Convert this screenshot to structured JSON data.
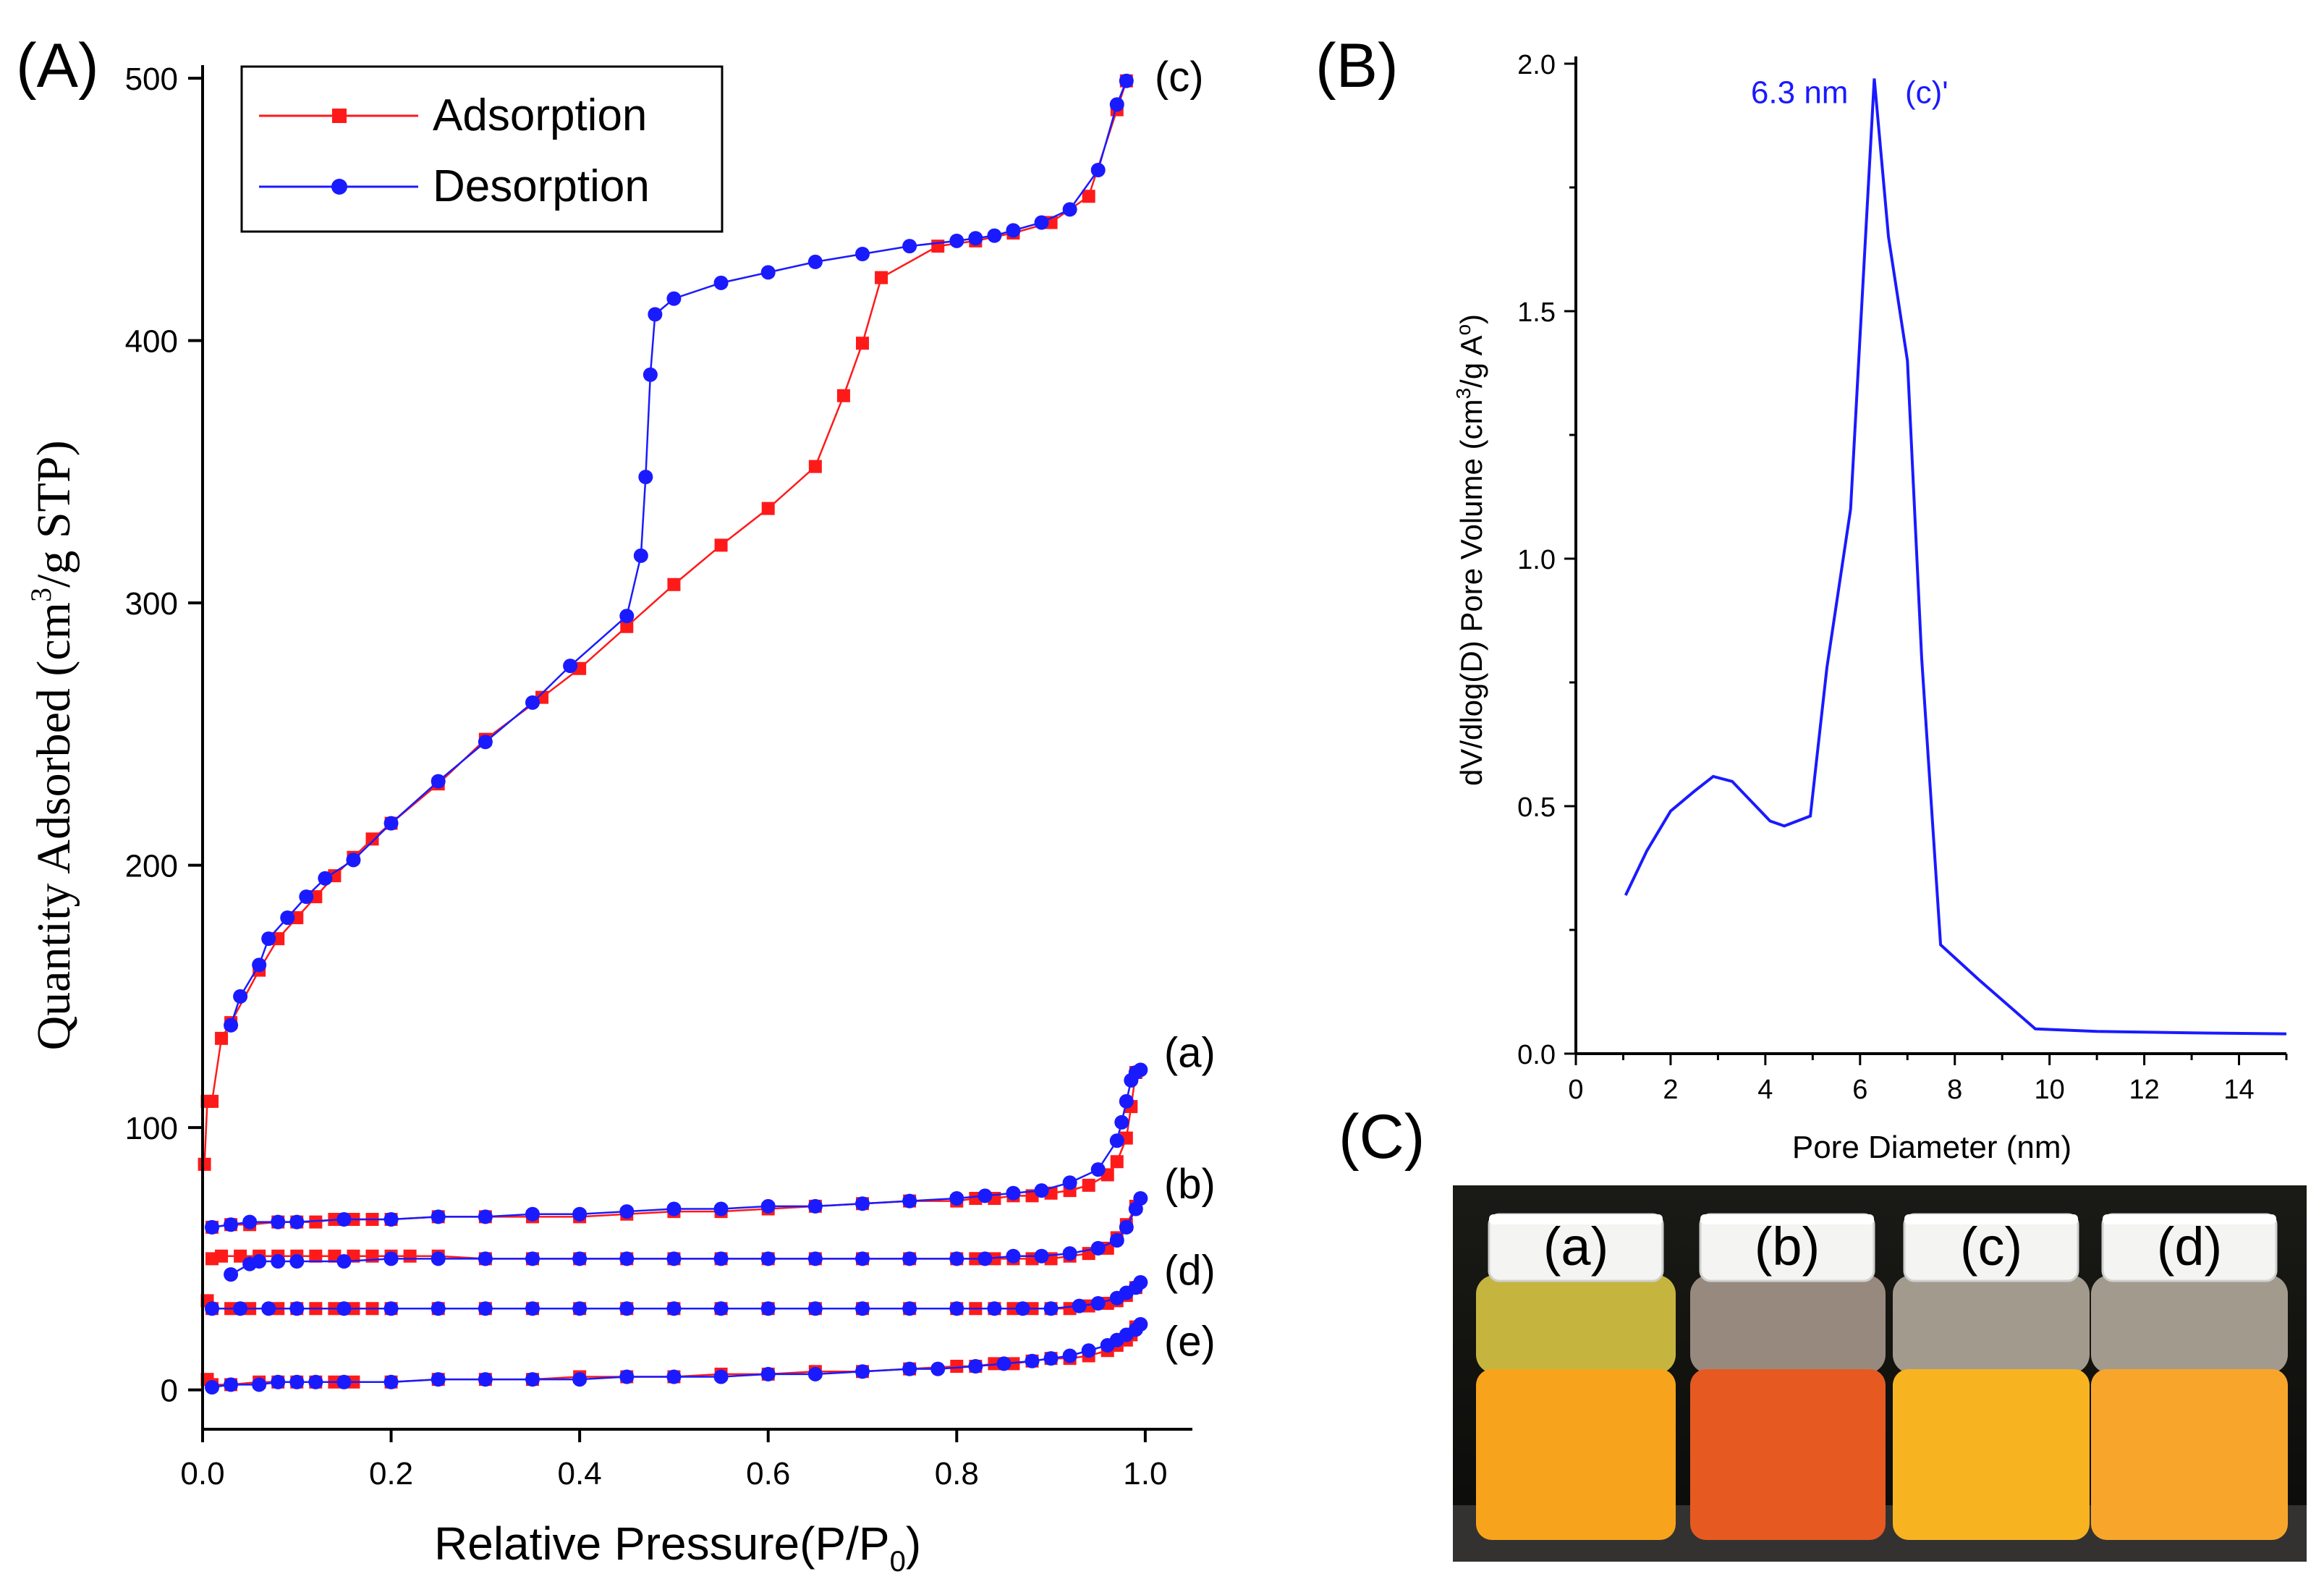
{
  "panel_labels": {
    "a": "(A)",
    "b": "(B)",
    "c": "(C)"
  },
  "colors": {
    "adsorption": "#ff1a1a",
    "desorption": "#1a1aff",
    "axis": "#000000",
    "curve_b": "#1a1aff"
  },
  "chart_data": [
    {
      "id": "isotherm",
      "type": "scatter",
      "title": "",
      "xlabel_main": "Relative Pressure(P/P",
      "xlabel_sub": "0",
      "xlabel_close": ")",
      "ylabel_pre": "Quantity Adsorbed (cm",
      "ylabel_sup": "3",
      "ylabel_post": "/g STP)",
      "xlim": [
        0,
        1.05
      ],
      "ylim": [
        -15,
        505
      ],
      "xticks": [
        0.0,
        0.2,
        0.4,
        0.6,
        0.8,
        1.0
      ],
      "xtick_labels": [
        "0.0",
        "0.2",
        "0.4",
        "0.6",
        "0.8",
        "1.0"
      ],
      "yticks": [
        0,
        100,
        200,
        300,
        400,
        500
      ],
      "ytick_labels": [
        "0",
        "100",
        "200",
        "300",
        "400",
        "500"
      ],
      "legend": {
        "position": "top-left",
        "adsorption_label": "Adsorption",
        "desorption_label": "Desorption"
      },
      "curve_labels": [
        {
          "text": "(c)",
          "x": 1.01,
          "y": 500
        },
        {
          "text": "(a)",
          "x": 1.02,
          "y": 128
        },
        {
          "text": "(b)",
          "x": 1.02,
          "y": 78
        },
        {
          "text": "(d)",
          "x": 1.02,
          "y": 45
        },
        {
          "text": "(e)",
          "x": 1.02,
          "y": 18
        }
      ],
      "series": [
        {
          "name": "(c) Adsorption",
          "kind": "adsorption",
          "x": [
            0.002,
            0.005,
            0.01,
            0.02,
            0.03,
            0.06,
            0.08,
            0.1,
            0.12,
            0.14,
            0.16,
            0.18,
            0.2,
            0.25,
            0.3,
            0.36,
            0.4,
            0.45,
            0.5,
            0.55,
            0.6,
            0.65,
            0.68,
            0.7,
            0.72,
            0.78,
            0.82,
            0.86,
            0.9,
            0.94,
            0.97,
            0.98
          ],
          "y": [
            86,
            110,
            110,
            134,
            140,
            160,
            172,
            180,
            188,
            196,
            203,
            210,
            216,
            231,
            248,
            264,
            275,
            291,
            307,
            322,
            336,
            352,
            379,
            399,
            424,
            436,
            438,
            441,
            445,
            455,
            488,
            499
          ]
        },
        {
          "name": "(c) Desorption",
          "kind": "desorption",
          "x": [
            0.98,
            0.97,
            0.95,
            0.92,
            0.89,
            0.86,
            0.84,
            0.82,
            0.8,
            0.75,
            0.7,
            0.65,
            0.6,
            0.55,
            0.5,
            0.48,
            0.475,
            0.47,
            0.465,
            0.45,
            0.39,
            0.35,
            0.3,
            0.25,
            0.2,
            0.16,
            0.13,
            0.11,
            0.09,
            0.07,
            0.06,
            0.04,
            0.03
          ],
          "y": [
            499,
            490,
            465,
            450,
            445,
            442,
            440,
            439,
            438,
            436,
            433,
            430,
            426,
            422,
            416,
            410,
            387,
            348,
            318,
            295,
            276,
            262,
            247,
            232,
            216,
            202,
            195,
            188,
            180,
            172,
            162,
            150,
            139
          ]
        },
        {
          "name": "(a) Adsorption",
          "kind": "adsorption",
          "x": [
            0.01,
            0.03,
            0.05,
            0.08,
            0.1,
            0.12,
            0.14,
            0.16,
            0.18,
            0.2,
            0.25,
            0.3,
            0.35,
            0.4,
            0.45,
            0.5,
            0.55,
            0.6,
            0.65,
            0.7,
            0.75,
            0.8,
            0.82,
            0.84,
            0.86,
            0.88,
            0.9,
            0.92,
            0.94,
            0.96,
            0.97,
            0.98,
            0.985,
            0.99
          ],
          "y": [
            62,
            63,
            63,
            64,
            64,
            64,
            65,
            65,
            65,
            65,
            66,
            66,
            66,
            66,
            67,
            68,
            68,
            69,
            70,
            71,
            72,
            72,
            73,
            73,
            74,
            74,
            75,
            76,
            78,
            82,
            87,
            96,
            108,
            121
          ]
        },
        {
          "name": "(a) Desorption",
          "kind": "desorption",
          "x": [
            0.995,
            0.99,
            0.985,
            0.98,
            0.975,
            0.97,
            0.95,
            0.92,
            0.89,
            0.86,
            0.83,
            0.8,
            0.75,
            0.7,
            0.65,
            0.6,
            0.55,
            0.5,
            0.45,
            0.4,
            0.35,
            0.3,
            0.25,
            0.2,
            0.15,
            0.1,
            0.08,
            0.05,
            0.03,
            0.01
          ],
          "y": [
            122,
            121,
            118,
            110,
            102,
            95,
            84,
            79,
            76,
            75,
            74,
            73,
            72,
            71,
            70,
            70,
            69,
            69,
            68,
            67,
            67,
            66,
            66,
            65,
            65,
            64,
            64,
            64,
            63,
            62
          ]
        },
        {
          "name": "(b) Adsorption",
          "kind": "adsorption",
          "x": [
            0.01,
            0.02,
            0.04,
            0.06,
            0.08,
            0.1,
            0.12,
            0.14,
            0.16,
            0.18,
            0.2,
            0.22,
            0.25,
            0.3,
            0.35,
            0.4,
            0.45,
            0.5,
            0.55,
            0.6,
            0.65,
            0.7,
            0.75,
            0.8,
            0.82,
            0.84,
            0.86,
            0.88,
            0.9,
            0.92,
            0.94,
            0.96,
            0.97,
            0.98,
            0.99
          ],
          "y": [
            50,
            51,
            51,
            51,
            51,
            51,
            51,
            51,
            51,
            51,
            51,
            51,
            51,
            50,
            50,
            50,
            50,
            50,
            50,
            50,
            50,
            50,
            50,
            50,
            50,
            50,
            50,
            50,
            50,
            51,
            52,
            54,
            58,
            63,
            70
          ]
        },
        {
          "name": "(b) Desorption",
          "kind": "desorption",
          "x": [
            0.995,
            0.99,
            0.98,
            0.97,
            0.95,
            0.92,
            0.89,
            0.86,
            0.83,
            0.8,
            0.75,
            0.7,
            0.65,
            0.6,
            0.55,
            0.5,
            0.45,
            0.4,
            0.35,
            0.3,
            0.25,
            0.2,
            0.15,
            0.1,
            0.08,
            0.06,
            0.05,
            0.03
          ],
          "y": [
            73,
            69,
            62,
            57,
            54,
            52,
            51,
            51,
            50,
            50,
            50,
            50,
            50,
            50,
            50,
            50,
            50,
            50,
            50,
            50,
            50,
            50,
            49,
            49,
            49,
            49,
            48,
            44
          ]
        },
        {
          "name": "(d) Adsorption",
          "kind": "adsorption",
          "x": [
            0.005,
            0.01,
            0.03,
            0.05,
            0.08,
            0.1,
            0.12,
            0.14,
            0.16,
            0.18,
            0.2,
            0.25,
            0.3,
            0.35,
            0.4,
            0.45,
            0.5,
            0.55,
            0.6,
            0.65,
            0.7,
            0.75,
            0.8,
            0.82,
            0.84,
            0.86,
            0.88,
            0.9,
            0.92,
            0.94,
            0.96,
            0.97,
            0.98,
            0.99
          ],
          "y": [
            34,
            31,
            31,
            31,
            31,
            31,
            31,
            31,
            31,
            31,
            31,
            31,
            31,
            31,
            31,
            31,
            31,
            31,
            31,
            31,
            31,
            31,
            31,
            31,
            31,
            31,
            31,
            31,
            31,
            32,
            33,
            34,
            36,
            39
          ]
        },
        {
          "name": "(d) Desorption",
          "kind": "desorption",
          "x": [
            0.995,
            0.99,
            0.98,
            0.97,
            0.95,
            0.93,
            0.9,
            0.87,
            0.84,
            0.8,
            0.75,
            0.7,
            0.65,
            0.6,
            0.55,
            0.5,
            0.45,
            0.4,
            0.35,
            0.3,
            0.25,
            0.2,
            0.15,
            0.1,
            0.07,
            0.04,
            0.01
          ],
          "y": [
            41,
            39,
            37,
            35,
            33,
            32,
            31,
            31,
            31,
            31,
            31,
            31,
            31,
            31,
            31,
            31,
            31,
            31,
            31,
            31,
            31,
            31,
            31,
            31,
            31,
            31,
            31
          ]
        },
        {
          "name": "(e) Adsorption",
          "kind": "adsorption",
          "x": [
            0.005,
            0.01,
            0.03,
            0.06,
            0.08,
            0.1,
            0.12,
            0.14,
            0.16,
            0.2,
            0.25,
            0.3,
            0.35,
            0.4,
            0.45,
            0.5,
            0.55,
            0.6,
            0.65,
            0.7,
            0.75,
            0.8,
            0.82,
            0.84,
            0.86,
            0.88,
            0.9,
            0.92,
            0.94,
            0.96,
            0.97,
            0.98,
            0.985,
            0.99
          ],
          "y": [
            4,
            2,
            2,
            3,
            3,
            3,
            3,
            3,
            3,
            3,
            4,
            4,
            4,
            5,
            5,
            5,
            6,
            6,
            7,
            7,
            8,
            9,
            9,
            10,
            10,
            11,
            12,
            12,
            13,
            15,
            17,
            19,
            21,
            24
          ]
        },
        {
          "name": "(e) Desorption",
          "kind": "desorption",
          "x": [
            0.995,
            0.99,
            0.98,
            0.97,
            0.96,
            0.94,
            0.92,
            0.9,
            0.88,
            0.85,
            0.82,
            0.78,
            0.75,
            0.7,
            0.65,
            0.6,
            0.55,
            0.5,
            0.45,
            0.4,
            0.35,
            0.3,
            0.25,
            0.2,
            0.15,
            0.12,
            0.1,
            0.08,
            0.06,
            0.03,
            0.01
          ],
          "y": [
            25,
            23,
            21,
            19,
            17,
            15,
            13,
            12,
            11,
            10,
            9,
            8,
            8,
            7,
            6,
            6,
            5,
            5,
            5,
            4,
            4,
            4,
            4,
            3,
            3,
            3,
            3,
            3,
            2,
            2,
            1
          ]
        }
      ]
    },
    {
      "id": "pore_distribution",
      "type": "line",
      "title": "",
      "xlabel": "Pore Diameter (nm)",
      "ylabel_pre": "dV/dlog(D) Pore Volume (cm",
      "ylabel_sup": "3",
      "ylabel_mid": "/g A",
      "ylabel_sup2": "o",
      "ylabel_post": ")",
      "xlim": [
        0,
        15
      ],
      "ylim": [
        0,
        2.0
      ],
      "xticks": [
        0,
        2,
        4,
        6,
        8,
        10,
        12,
        14
      ],
      "xtick_labels": [
        "0",
        "2",
        "4",
        "6",
        "8",
        "10",
        "12",
        "14"
      ],
      "yticks": [
        0.0,
        0.5,
        1.0,
        1.5,
        2.0
      ],
      "ytick_labels": [
        "0.0",
        "0.5",
        "1.0",
        "1.5",
        "2.0"
      ],
      "peak_annotation": {
        "text": "6.3 nm",
        "x": 6.3,
        "y": 1.92
      },
      "series_label": {
        "text": "(c)'",
        "x": 6.95,
        "y": 1.92
      },
      "series": [
        {
          "name": "(c)'",
          "x": [
            1.05,
            1.5,
            2.0,
            2.5,
            2.9,
            3.3,
            3.7,
            4.1,
            4.4,
            4.95,
            5.3,
            5.8,
            6.0,
            6.3,
            6.6,
            7.0,
            7.3,
            7.7,
            8.5,
            9.7,
            11.0,
            13.0,
            15.0
          ],
          "y": [
            0.32,
            0.41,
            0.49,
            0.53,
            0.56,
            0.55,
            0.51,
            0.47,
            0.46,
            0.48,
            0.78,
            1.1,
            1.45,
            1.97,
            1.65,
            1.4,
            0.8,
            0.22,
            0.15,
            0.05,
            0.045,
            0.042,
            0.04
          ]
        }
      ]
    }
  ],
  "photo": {
    "bottle_labels": [
      "(a)",
      "(b)",
      "(c)",
      "(d)"
    ],
    "liquid_colors": [
      "#f7a41c",
      "#e65a22",
      "#f8b321",
      "#f8a62b"
    ],
    "headspace_colors": [
      "#c9b441",
      "#9c8f86",
      "#a39b8c",
      "#a39a8d"
    ]
  }
}
